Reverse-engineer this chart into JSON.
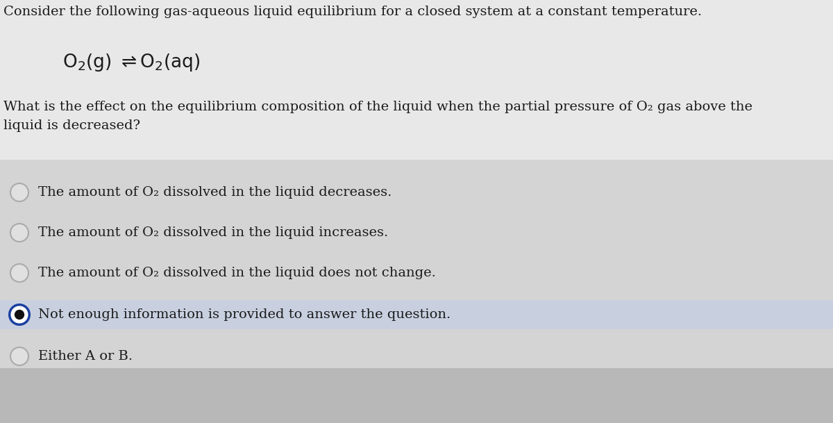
{
  "background_color": "#d8d8d8",
  "title_text": "Consider the following gas-aqueous liquid equilibrium for a closed system at a constant temperature.",
  "question_text": "What is the effect on the equilibrium composition of the liquid when the partial pressure of O₂ gas above the\nliquid is decreased?",
  "options": [
    "The amount of O₂ dissolved in the liquid decreases.",
    "The amount of O₂ dissolved in the liquid increases.",
    "The amount of O₂ dissolved in the liquid does not change.",
    "Not enough information is provided to answer the question.",
    "Either A or B."
  ],
  "selected_option": 3,
  "text_color": "#1a1a1a",
  "font_size_title": 14,
  "font_size_equation": 17,
  "font_size_question": 14,
  "font_size_options": 14,
  "radio_color_unselected_edge": "#aaaaaa",
  "radio_color_selected_outer": "#1a3fa0",
  "radio_color_selected_inner": "#111111",
  "selected_row_bg": "#c8d0e0",
  "top_bg": "#e0e0e0",
  "bottom_bg": "#c0c0c0"
}
